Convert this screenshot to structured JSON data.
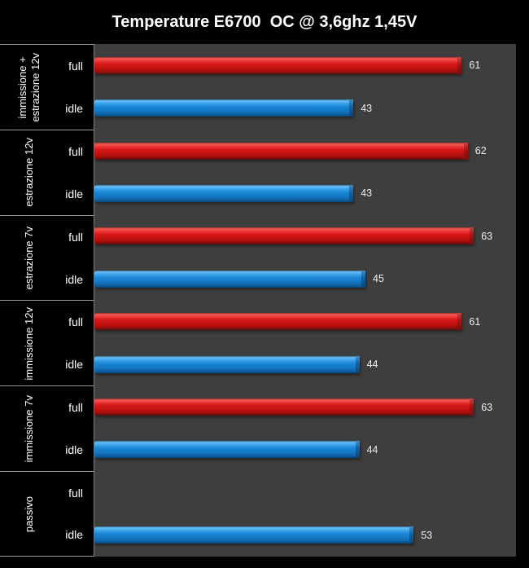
{
  "title": "Temperature E6700  OC @ 3,6ghz 1,45V",
  "colors": {
    "background": "#000000",
    "plot_background": "#3e3e3e",
    "grid_line": "#9b9b9b",
    "text": "#ffffff",
    "series_full": "#cc1414",
    "series_idle": "#1b87d6"
  },
  "chart_data": {
    "type": "bar",
    "orientation": "horizontal",
    "title": "Temperature E6700  OC @ 3,6ghz 1,45V",
    "xlabel": "",
    "ylabel": "",
    "xlim": [
      0,
      70
    ],
    "grid": false,
    "legend": "none (series labeled per row as full/idle)",
    "value_labels": "at bar end",
    "series_labels": [
      "full",
      "idle"
    ],
    "groups": [
      {
        "category": "immissione +\nestrazione 12v",
        "full": 61,
        "idle": 43
      },
      {
        "category": "estrazione 12v",
        "full": 62,
        "idle": 43
      },
      {
        "category": "estrazione 7v",
        "full": 63,
        "idle": 45
      },
      {
        "category": "immissione 12v",
        "full": 61,
        "idle": 44
      },
      {
        "category": "immissione 7v",
        "full": 63,
        "idle": 44
      },
      {
        "category": "passivo",
        "full": null,
        "idle": 53
      }
    ]
  }
}
